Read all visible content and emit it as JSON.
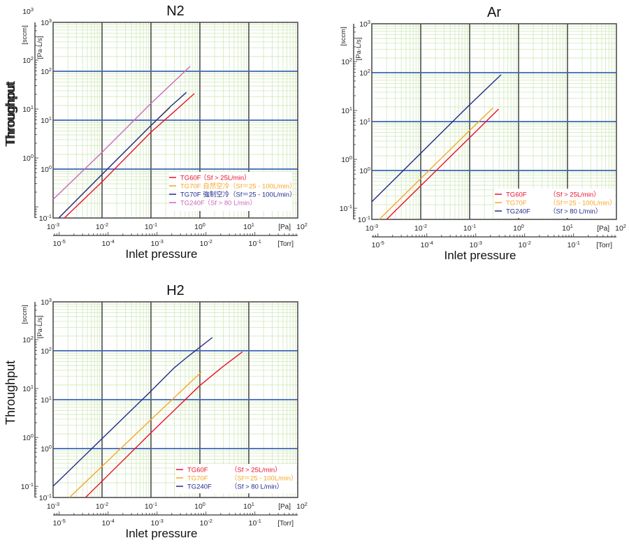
{
  "colors": {
    "major_h": "#3a64b8",
    "major_v": "#333333",
    "minor": "#cfe8b8",
    "frame": "#444444"
  },
  "chart_data": [
    {
      "type": "line",
      "title": "N2",
      "ylabel": "Throughput",
      "xlabel": "Inlet pressure",
      "x_scale": "log",
      "y_scale": "log",
      "xlim": [
        0.001,
        100
      ],
      "ylim": [
        0.1,
        1000
      ],
      "x_unit": "[Pa]",
      "x2_unit": "[Torr]",
      "y_unit": "[Pa·L/s]",
      "y2_unit": "[sccm]",
      "x_ticks": [
        {
          "value": 0.001,
          "exp": "-3"
        },
        {
          "value": 0.01,
          "exp": "-2"
        },
        {
          "value": 0.1,
          "exp": "-1"
        },
        {
          "value": 1,
          "exp": "0"
        },
        {
          "value": 10,
          "exp": "1"
        },
        {
          "value": 100,
          "exp": "2"
        }
      ],
      "x2_ticks": [
        {
          "value_torr": 1e-05,
          "exp": "-5"
        },
        {
          "value_torr": 0.0001,
          "exp": "-4"
        },
        {
          "value_torr": 0.001,
          "exp": "-3"
        },
        {
          "value_torr": 0.01,
          "exp": "-2"
        },
        {
          "value_torr": 0.1,
          "exp": "-1"
        }
      ],
      "y_ticks": [
        {
          "value": 0.1,
          "exp": "-1"
        },
        {
          "value": 1,
          "exp": "0"
        },
        {
          "value": 10,
          "exp": "1"
        },
        {
          "value": 100,
          "exp": "2"
        },
        {
          "value": 1000,
          "exp": "3"
        }
      ],
      "y2_ticks": [
        {
          "value_sccm": 1,
          "exp": "0"
        },
        {
          "value_sccm": 10,
          "exp": "1"
        },
        {
          "value_sccm": 100,
          "exp": "2"
        },
        {
          "value_sccm": 1000,
          "exp": "3"
        }
      ],
      "legend_position": "bottom-right",
      "series": [
        {
          "name": "TG60F",
          "note": "（Sf > 25L/min）",
          "color": "#e8102a",
          "points": [
            [
              0.0017,
              0.1
            ],
            [
              0.01,
              0.55
            ],
            [
              0.1,
              5.7
            ],
            [
              0.3,
              15
            ],
            [
              0.77,
              35
            ]
          ]
        },
        {
          "name": "TG70F 自然空冷",
          "note": "（Sf＝25 - 100L/min）",
          "color": "#f5a623",
          "points": [
            [
              0.0013,
              0.1
            ],
            [
              0.01,
              0.78
            ],
            [
              0.1,
              7.8
            ],
            [
              0.245,
              18
            ]
          ]
        },
        {
          "name": "TG70F 強制空冷",
          "note": "（Sf＝25 - 100L/min）",
          "color": "#1f2a8a",
          "points": [
            [
              0.0013,
              0.1
            ],
            [
              0.01,
              0.78
            ],
            [
              0.1,
              7.8
            ],
            [
              0.25,
              19
            ],
            [
              0.53,
              37
            ]
          ]
        },
        {
          "name": "TG240F",
          "note": "（Sf > 80 L/min）",
          "color": "#cc66bb",
          "points": [
            [
              0.001,
              0.24
            ],
            [
              0.01,
              2.2
            ],
            [
              0.1,
              22
            ],
            [
              0.63,
              126
            ]
          ]
        }
      ]
    },
    {
      "type": "line",
      "title": "Ar",
      "ylabel": "Throughput",
      "xlabel": "Inlet pressure",
      "x_scale": "log",
      "y_scale": "log",
      "xlim": [
        0.001,
        100
      ],
      "ylim": [
        0.1,
        1000
      ],
      "x_unit": "[Pa]",
      "x2_unit": "[Torr]",
      "y_unit": "[Pa·L/s]",
      "y2_unit": "[sccm]",
      "x_ticks": [
        {
          "value": 0.001,
          "exp": "-3"
        },
        {
          "value": 0.01,
          "exp": "-2"
        },
        {
          "value": 0.1,
          "exp": "-1"
        },
        {
          "value": 1,
          "exp": "0"
        },
        {
          "value": 10,
          "exp": "1"
        },
        {
          "value": 100,
          "exp": "2"
        }
      ],
      "x2_ticks": [
        {
          "value_torr": 1e-05,
          "exp": "-5"
        },
        {
          "value_torr": 0.0001,
          "exp": "-4"
        },
        {
          "value_torr": 0.001,
          "exp": "-3"
        },
        {
          "value_torr": 0.01,
          "exp": "-2"
        },
        {
          "value_torr": 0.1,
          "exp": "-1"
        }
      ],
      "y_ticks": [
        {
          "value": 0.1,
          "exp": "-1"
        },
        {
          "value": 1,
          "exp": "0"
        },
        {
          "value": 10,
          "exp": "1"
        },
        {
          "value": 100,
          "exp": "2"
        },
        {
          "value": 1000,
          "exp": "3"
        }
      ],
      "y2_ticks": [
        {
          "value_sccm": 0.1,
          "exp": "-1"
        },
        {
          "value_sccm": 1,
          "exp": "0"
        },
        {
          "value_sccm": 10,
          "exp": "1"
        },
        {
          "value_sccm": 100,
          "exp": "2"
        }
      ],
      "legend_position": "bottom-right",
      "series": [
        {
          "name": "TG60F",
          "note": "（Sf > 25L/min）",
          "color": "#e8102a",
          "points": [
            [
              0.002,
              0.1
            ],
            [
              0.1,
              4.7
            ],
            [
              0.39,
              18
            ]
          ]
        },
        {
          "name": "TG70F",
          "note": "（Sf＝25 - 100L/min）",
          "color": "#f5a623",
          "points": [
            [
              0.00142,
              0.1
            ],
            [
              0.1,
              6.6
            ],
            [
              0.3,
              19
            ]
          ]
        },
        {
          "name": "TG240F",
          "note": "（Sf > 80 L/min）",
          "color": "#1f2a8a",
          "points": [
            [
              0.001,
              0.23
            ],
            [
              0.1,
              22
            ],
            [
              0.44,
              91
            ]
          ]
        }
      ]
    },
    {
      "type": "line",
      "title": "H2",
      "ylabel": "Throughput",
      "xlabel": "Inlet pressure",
      "x_scale": "log",
      "y_scale": "log",
      "xlim": [
        0.001,
        100
      ],
      "ylim": [
        0.1,
        1000
      ],
      "x_unit": "[Pa]",
      "x2_unit": "[Torr]",
      "y_unit": "[Pa·L/s]",
      "y2_unit": "[sccm]",
      "x_ticks": [
        {
          "value": 0.001,
          "exp": "-3"
        },
        {
          "value": 0.01,
          "exp": "-2"
        },
        {
          "value": 0.1,
          "exp": "-1"
        },
        {
          "value": 1,
          "exp": "0"
        },
        {
          "value": 10,
          "exp": "1"
        },
        {
          "value": 100,
          "exp": "2"
        }
      ],
      "x2_ticks": [
        {
          "value_torr": 1e-05,
          "exp": "-5"
        },
        {
          "value_torr": 0.0001,
          "exp": "-4"
        },
        {
          "value_torr": 0.001,
          "exp": "-3"
        },
        {
          "value_torr": 0.01,
          "exp": "-2"
        },
        {
          "value_torr": 0.1,
          "exp": "-1"
        }
      ],
      "y_ticks": [
        {
          "value": 0.1,
          "exp": "-1"
        },
        {
          "value": 1,
          "exp": "0"
        },
        {
          "value": 10,
          "exp": "1"
        },
        {
          "value": 100,
          "exp": "2"
        },
        {
          "value": 1000,
          "exp": "3"
        }
      ],
      "y2_ticks": [
        {
          "value_sccm": 0.1,
          "exp": "-1"
        },
        {
          "value_sccm": 1,
          "exp": "0"
        },
        {
          "value_sccm": 10,
          "exp": "1"
        },
        {
          "value_sccm": 100,
          "exp": "2"
        }
      ],
      "legend_position": "bottom-right",
      "series": [
        {
          "name": "TG60F",
          "note": "（Sf > 25L/min）",
          "color": "#e8102a",
          "points": [
            [
              0.0046,
              0.1
            ],
            [
              0.1,
              2.1
            ],
            [
              1.0,
              19.5
            ],
            [
              3,
              48
            ],
            [
              7.4,
              95
            ]
          ]
        },
        {
          "name": "TG70F",
          "note": "（Sf＝25 - 100L/min）",
          "color": "#f5a623",
          "points": [
            [
              0.00215,
              0.1
            ],
            [
              0.1,
              3.9
            ],
            [
              1.08,
              37
            ]
          ]
        },
        {
          "name": "TG240F",
          "note": "（Sf > 80 L/min）",
          "color": "#1f2a8a",
          "points": [
            [
              0.001,
              0.17
            ],
            [
              0.1,
              15
            ],
            [
              0.3,
              45
            ],
            [
              0.53,
              72
            ],
            [
              1.8,
              187
            ]
          ]
        }
      ]
    }
  ]
}
